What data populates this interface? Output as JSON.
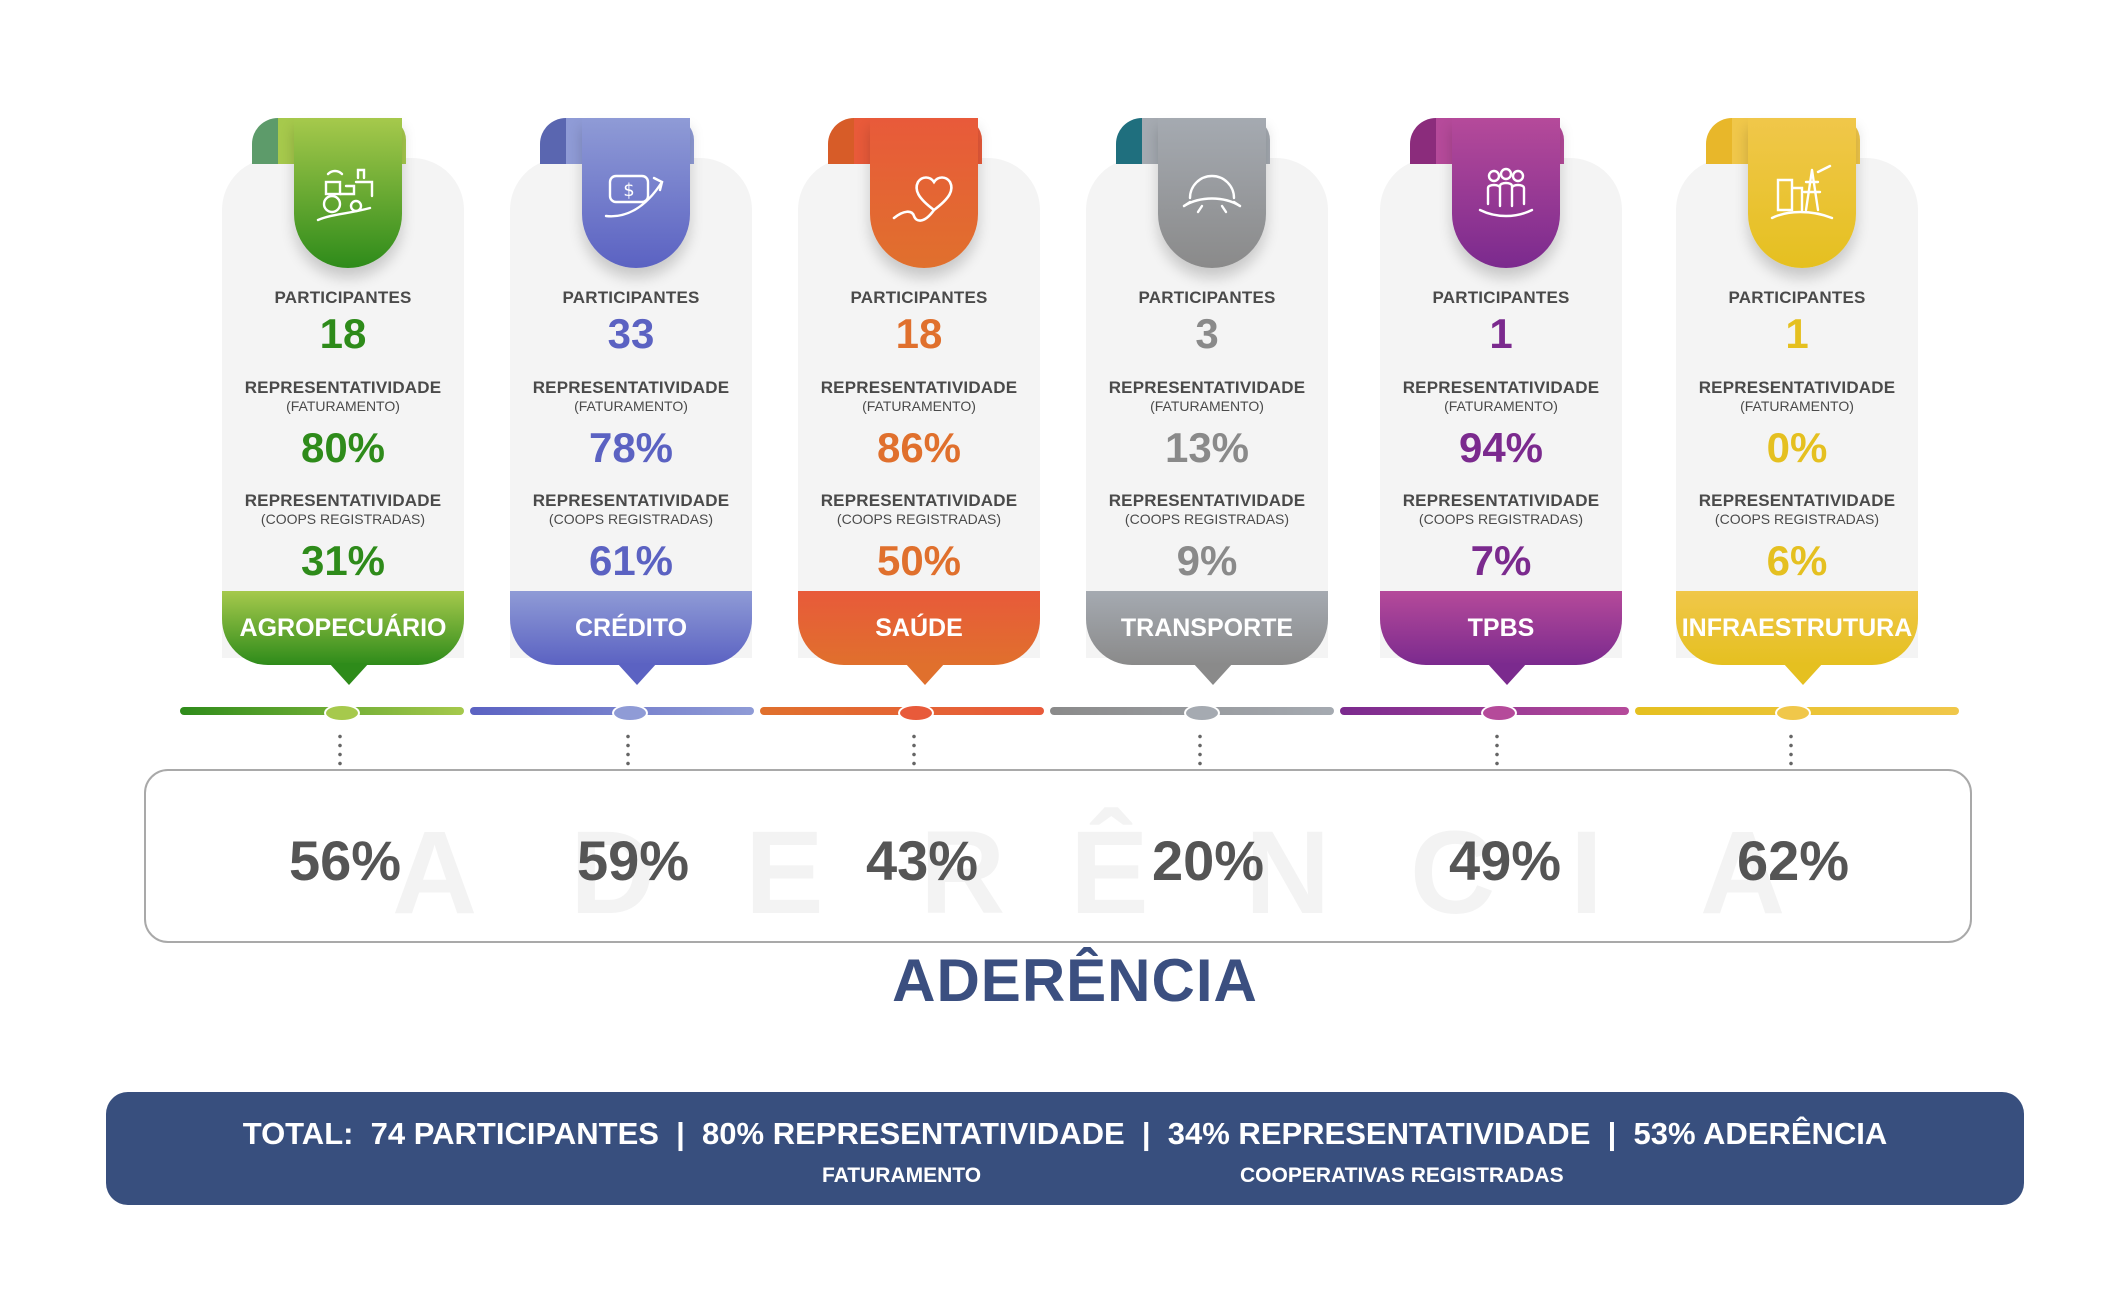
{
  "labels": {
    "participantes": "PARTICIPANTES",
    "representatividade": "REPRESENTATIVIDADE",
    "faturamento": "(FATURAMENTO)",
    "coops": "(COOPS REGISTRADAS)"
  },
  "sectors": [
    {
      "name": "AGROPECUÁRIO",
      "icon": "tractor-farm-icon",
      "participantes": "18",
      "faturamento": "80%",
      "coops": "31%",
      "aderencia": "56%",
      "color": "#2e8b1a",
      "light": "#a6c94c",
      "tab": "#5d9b6a"
    },
    {
      "name": "CRÉDITO",
      "icon": "money-growth-icon",
      "participantes": "33",
      "faturamento": "78%",
      "coops": "61%",
      "aderencia": "59%",
      "color": "#5b62c2",
      "light": "#8f9bd6",
      "tab": "#5a66b0"
    },
    {
      "name": "SAÚDE",
      "icon": "heart-icon",
      "participantes": "18",
      "faturamento": "86%",
      "coops": "50%",
      "aderencia": "43%",
      "color": "#e0702d",
      "light": "#e85a3a",
      "tab": "#d75c28"
    },
    {
      "name": "TRANSPORTE",
      "icon": "road-globe-icon",
      "participantes": "3",
      "faturamento": "13%",
      "coops": "9%",
      "aderencia": "20%",
      "color": "#8a8a8a",
      "light": "#a5aab1",
      "tab": "#1f6f7e"
    },
    {
      "name": "TPBS",
      "icon": "people-group-icon",
      "participantes": "1",
      "faturamento": "94%",
      "coops": "7%",
      "aderencia": "49%",
      "color": "#7b2a8e",
      "light": "#b54a9a",
      "tab": "#8b2c7c"
    },
    {
      "name": "INFRAESTRUTURA",
      "icon": "power-tower-icon",
      "participantes": "1",
      "faturamento": "0%",
      "coops": "6%",
      "aderencia": "62%",
      "color": "#e5c020",
      "light": "#f0c74a",
      "tab": "#e8b72a"
    }
  ],
  "watermark": [
    "A",
    "D",
    "E",
    "R",
    "Ê",
    "N",
    "C",
    "I",
    "A"
  ],
  "aderencia_title": "ADERÊNCIA",
  "total": {
    "line": "TOTAL:  74 PARTICIPANTES  |  80% REPRESENTATIVIDADE  |  34% REPRESENTATIVIDADE  |  53% ADERÊNCIA",
    "sub1": "FATURAMENTO",
    "sub2": "COOPERATIVAS REGISTRADAS"
  }
}
